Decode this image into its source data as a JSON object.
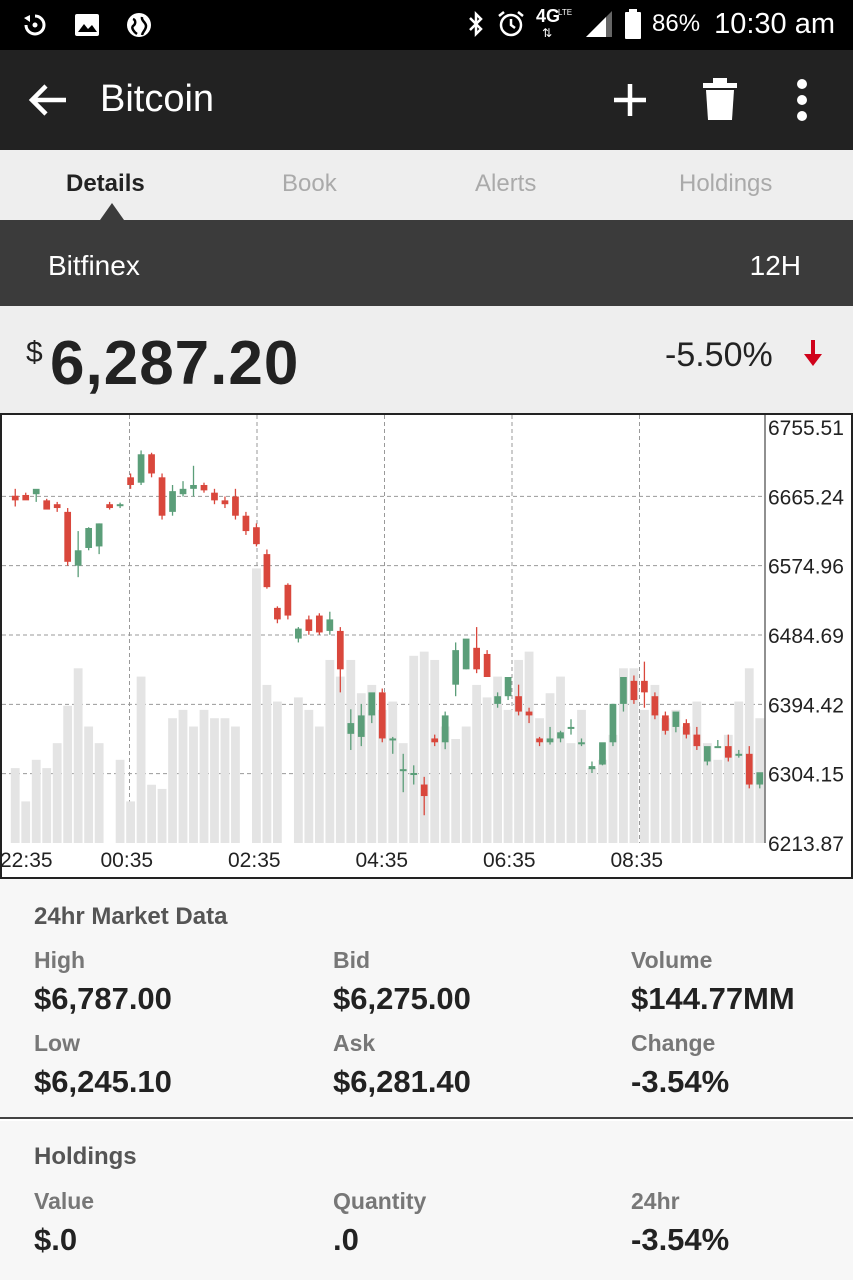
{
  "status_bar": {
    "network": "4G",
    "network_sub": "LTE",
    "battery": "86%",
    "time": "10:30 am",
    "icons": [
      "rotate-icon",
      "image-icon",
      "globe-icon",
      "bluetooth-icon",
      "alarm-icon",
      "signal-icon",
      "battery-icon"
    ]
  },
  "app_bar": {
    "title": "Bitcoin",
    "icons": [
      "back-arrow-icon",
      "add-icon",
      "delete-icon",
      "more-vert-icon"
    ]
  },
  "tabs": [
    {
      "label": "Details",
      "active": true
    },
    {
      "label": "Book",
      "active": false
    },
    {
      "label": "Alerts",
      "active": false
    },
    {
      "label": "Holdings",
      "active": false
    }
  ],
  "exchange": {
    "name": "Bitfinex",
    "interval": "12H"
  },
  "price": {
    "currency": "$",
    "value": "6,287.20",
    "change": "-5.50%",
    "direction": "down"
  },
  "colors": {
    "up": "#5b9e79",
    "down": "#d9473c",
    "volume": "#e4e4e4",
    "grid": "#999999",
    "arrow_down": "#d0021b"
  },
  "chart_data": {
    "type": "candlestick",
    "y_ticks": [
      "6755.51",
      "6665.24",
      "6574.96",
      "6484.69",
      "6394.42",
      "6304.15",
      "6213.87"
    ],
    "x_ticks": [
      "22:35",
      "00:35",
      "02:35",
      "04:35",
      "06:35",
      "08:35"
    ],
    "ylim": [
      6213.87,
      6755.51
    ],
    "candles": [
      [
        6666,
        6675,
        6660,
        6652
      ],
      [
        6667,
        6670,
        6660,
        6663
      ],
      [
        6668,
        6672,
        6675,
        6658
      ],
      [
        6660,
        6662,
        6648,
        6655
      ],
      [
        6655,
        6658,
        6650,
        6645
      ],
      [
        6645,
        6650,
        6580,
        6575
      ],
      [
        6575,
        6620,
        6595,
        6560
      ],
      [
        6598,
        6625,
        6624,
        6595
      ],
      [
        6600,
        6630,
        6630,
        6590
      ],
      [
        6655,
        6658,
        6650,
        6648
      ],
      [
        6654,
        6657,
        6655,
        6650
      ],
      [
        6690,
        6695,
        6680,
        6675
      ],
      [
        6683,
        6725,
        6720,
        6680
      ],
      [
        6720,
        6722,
        6695,
        6690
      ],
      [
        6690,
        6695,
        6640,
        6635
      ],
      [
        6645,
        6680,
        6672,
        6640
      ],
      [
        6668,
        6685,
        6675,
        6665
      ],
      [
        6675,
        6705,
        6680,
        6665
      ],
      [
        6680,
        6683,
        6673,
        6670
      ],
      [
        6670,
        6675,
        6660,
        6655
      ],
      [
        6660,
        6665,
        6655,
        6650
      ],
      [
        6665,
        6675,
        6640,
        6635
      ],
      [
        6640,
        6645,
        6620,
        6615
      ],
      [
        6625,
        6630,
        6603,
        6600
      ],
      [
        6590,
        6596,
        6547,
        6545
      ],
      [
        6520,
        6522,
        6505,
        6500
      ],
      [
        6550,
        6552,
        6510,
        6505
      ],
      [
        6480,
        6495,
        6493,
        6475
      ],
      [
        6505,
        6510,
        6490,
        6485
      ],
      [
        6510,
        6513,
        6488,
        6485
      ],
      [
        6490,
        6515,
        6505,
        6485
      ],
      [
        6490,
        6495,
        6440,
        6410
      ],
      [
        6356,
        6388,
        6370,
        6335
      ],
      [
        6352,
        6395,
        6380,
        6340
      ],
      [
        6380,
        6405,
        6410,
        6370
      ],
      [
        6410,
        6415,
        6350,
        6345
      ],
      [
        6350,
        6352,
        6350,
        6330
      ],
      [
        6310,
        6330,
        6310,
        6280
      ],
      [
        6305,
        6315,
        6305,
        6290
      ],
      [
        6290,
        6300,
        6275,
        6250
      ],
      [
        6350,
        6355,
        6345,
        6340
      ],
      [
        6345,
        6385,
        6380,
        6336
      ],
      [
        6420,
        6475,
        6465,
        6405
      ],
      [
        6440,
        6455,
        6480,
        6440
      ],
      [
        6468,
        6495,
        6440,
        6435
      ],
      [
        6460,
        6465,
        6430,
        6440
      ],
      [
        6395,
        6410,
        6405,
        6390
      ],
      [
        6405,
        6425,
        6430,
        6400
      ],
      [
        6405,
        6420,
        6385,
        6380
      ],
      [
        6385,
        6390,
        6380,
        6370
      ],
      [
        6350,
        6352,
        6345,
        6340
      ],
      [
        6345,
        6365,
        6350,
        6342
      ],
      [
        6350,
        6360,
        6358,
        6345
      ],
      [
        6365,
        6375,
        6365,
        6355
      ],
      [
        6345,
        6350,
        6345,
        6340
      ],
      [
        6310,
        6320,
        6314,
        6305
      ],
      [
        6316,
        6325,
        6345,
        6315
      ],
      [
        6345,
        6395,
        6395,
        6340
      ],
      [
        6395,
        6430,
        6430,
        6385
      ],
      [
        6425,
        6432,
        6400,
        6395
      ],
      [
        6425,
        6450,
        6410,
        6390
      ],
      [
        6405,
        6410,
        6380,
        6375
      ],
      [
        6380,
        6385,
        6360,
        6355
      ],
      [
        6365,
        6380,
        6385,
        6358
      ],
      [
        6370,
        6375,
        6355,
        6350
      ],
      [
        6355,
        6365,
        6340,
        6335
      ],
      [
        6320,
        6325,
        6340,
        6315
      ],
      [
        6340,
        6348,
        6340,
        6338
      ],
      [
        6340,
        6355,
        6325,
        6320
      ],
      [
        6330,
        6335,
        6330,
        6325
      ],
      [
        6330,
        6340,
        6290,
        6285
      ],
      [
        6290,
        6305,
        6306,
        6285
      ]
    ],
    "volume": [
      0.18,
      0.1,
      0.2,
      0.18,
      0.24,
      0.33,
      0.42,
      0.28,
      0.24,
      0.0,
      0.2,
      0.1,
      0.4,
      0.14,
      0.13,
      0.3,
      0.32,
      0.28,
      0.32,
      0.3,
      0.3,
      0.28,
      0.0,
      0.66,
      0.38,
      0.34,
      0.0,
      0.35,
      0.32,
      0.28,
      0.44,
      0.4,
      0.44,
      0.36,
      0.38,
      0.32,
      0.34,
      0.24,
      0.45,
      0.46,
      0.44,
      0.28,
      0.25,
      0.28,
      0.38,
      0.35,
      0.4,
      0.32,
      0.44,
      0.46,
      0.3,
      0.36,
      0.4,
      0.24,
      0.32,
      0.18,
      0.2,
      0.26,
      0.42,
      0.42,
      0.32,
      0.38,
      0.3,
      0.32,
      0.28,
      0.34,
      0.24,
      0.2,
      0.26,
      0.34,
      0.42,
      0.3
    ]
  },
  "market": {
    "title": "24hr Market Data",
    "items": [
      {
        "label": "High",
        "value": "$6,787.00"
      },
      {
        "label": "Bid",
        "value": "$6,275.00"
      },
      {
        "label": "Volume",
        "value": "$144.77MM"
      },
      {
        "label": "Low",
        "value": "$6,245.10"
      },
      {
        "label": "Ask",
        "value": "$6,281.40"
      },
      {
        "label": "Change",
        "value": "-3.54%"
      }
    ]
  },
  "holdings": {
    "title": "Holdings",
    "items": [
      {
        "label": "Value",
        "value": "$.0"
      },
      {
        "label": "Quantity",
        "value": ".0"
      },
      {
        "label": "24hr",
        "value": "-3.54%"
      }
    ]
  }
}
